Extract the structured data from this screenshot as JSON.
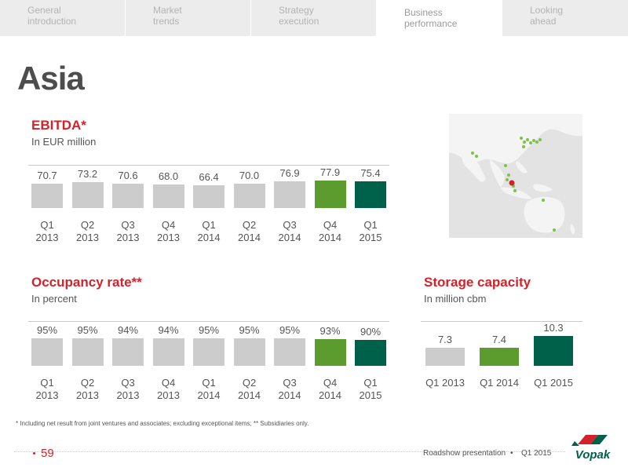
{
  "tabs": [
    {
      "label": "General\nintroduction",
      "active": false
    },
    {
      "label": "Market\ntrends",
      "active": false
    },
    {
      "label": "Strategy\nexecution",
      "active": false
    },
    {
      "label": "Business\nperformance",
      "active": true
    },
    {
      "label": "Looking\nahead",
      "active": false
    }
  ],
  "page_title": "Asia",
  "ebitda": {
    "title": "EBITDA*",
    "subtitle": "In EUR million"
  },
  "occupancy": {
    "title": "Occupancy rate**",
    "subtitle": "In percent"
  },
  "storage": {
    "title": "Storage capacity",
    "subtitle": "In million cbm"
  },
  "chart_data": [
    {
      "type": "bar",
      "title": "EBITDA*",
      "subtitle": "In EUR million",
      "categories": [
        "Q1\n2013",
        "Q2\n2013",
        "Q3\n2013",
        "Q4\n2013",
        "Q1\n2014",
        "Q2\n2014",
        "Q3\n2014",
        "Q4\n2014",
        "Q1\n2015"
      ],
      "values": [
        70.7,
        73.2,
        70.6,
        68.0,
        66.4,
        70.0,
        76.9,
        77.9,
        75.4
      ],
      "value_labels": [
        "70.7",
        "73.2",
        "70.6",
        "68.0",
        "66.4",
        "70.0",
        "76.9",
        "77.9",
        "75.4"
      ],
      "colors": [
        "#cccccc",
        "#cccccc",
        "#cccccc",
        "#cccccc",
        "#cccccc",
        "#cccccc",
        "#cccccc",
        "#5c9b2d",
        "#00614a"
      ]
    },
    {
      "type": "bar",
      "title": "Occupancy rate**",
      "subtitle": "In percent",
      "categories": [
        "Q1\n2013",
        "Q2\n2013",
        "Q3\n2013",
        "Q4\n2013",
        "Q1\n2014",
        "Q2\n2014",
        "Q3\n2014",
        "Q4\n2014",
        "Q1\n2015"
      ],
      "values": [
        95,
        95,
        94,
        94,
        95,
        95,
        95,
        93,
        90
      ],
      "value_labels": [
        "95%",
        "95%",
        "94%",
        "94%",
        "95%",
        "95%",
        "95%",
        "93%",
        "90%"
      ],
      "colors": [
        "#cccccc",
        "#cccccc",
        "#cccccc",
        "#cccccc",
        "#cccccc",
        "#cccccc",
        "#cccccc",
        "#5c9b2d",
        "#00614a"
      ]
    },
    {
      "type": "bar",
      "title": "Storage capacity",
      "subtitle": "In million cbm",
      "categories": [
        "Q1 2013",
        "Q1 2014",
        "Q1 2015"
      ],
      "values": [
        7.3,
        7.4,
        10.3
      ],
      "value_labels": [
        "7.3",
        "7.4",
        "10.3"
      ],
      "colors": [
        "#cccccc",
        "#5c9b2d",
        "#00614a"
      ]
    }
  ],
  "footnote": "* Including net result from joint ventures and associates; excluding exceptional items; ** Subsidiaries only.",
  "footer": {
    "page_number": "59",
    "presentation": "Roadshow presentation",
    "period": "Q1 2015",
    "logo_text": "Vopak"
  },
  "colors": {
    "accent_red": "#d2232a",
    "highlight_green": "#5c9b2d",
    "highlight_dark_green": "#00614a",
    "bar_grey": "#cccccc"
  }
}
